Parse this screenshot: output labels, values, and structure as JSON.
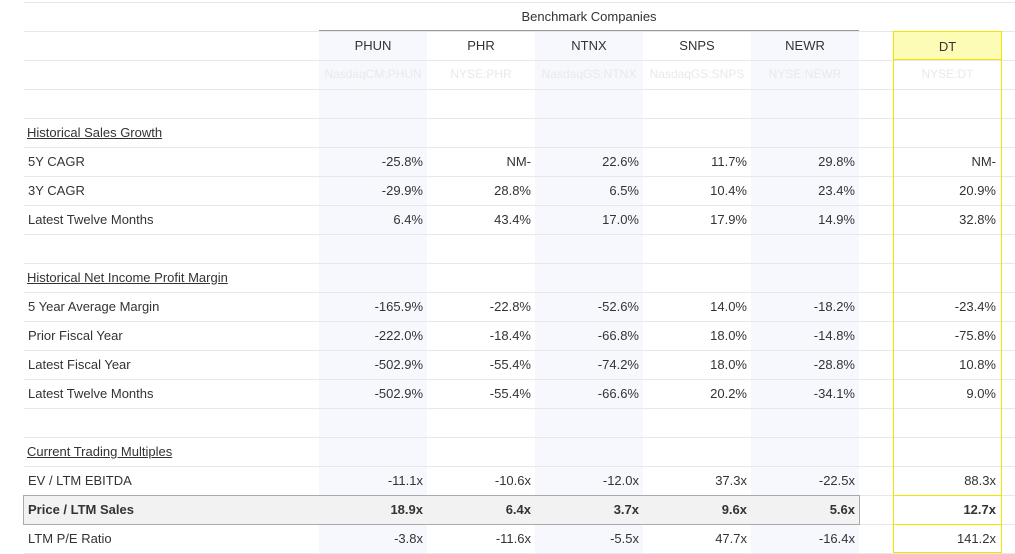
{
  "benchmark_title": "Benchmark Companies",
  "columns": [
    {
      "name": "PHUN",
      "ticker": "NasdaqCM:PHUN"
    },
    {
      "name": "PHR",
      "ticker": "NYSE:PHR"
    },
    {
      "name": "NTNX",
      "ticker": "NasdaqGS:NTNX"
    },
    {
      "name": "SNPS",
      "ticker": "NasdaqGS:SNPS"
    },
    {
      "name": "NEWR",
      "ticker": "NYSE:NEWR"
    }
  ],
  "target": {
    "name": "DT",
    "ticker": "NYSE:DT"
  },
  "rows": [
    {
      "type": "blank"
    },
    {
      "type": "section",
      "label": "Historical Sales Growth"
    },
    {
      "type": "data",
      "label": "5Y CAGR",
      "values": [
        "-25.8%",
        "NM-",
        "22.6%",
        "11.7%",
        "29.8%"
      ],
      "target": "NM-"
    },
    {
      "type": "data",
      "label": "3Y CAGR",
      "values": [
        "-29.9%",
        "28.8%",
        "6.5%",
        "10.4%",
        "23.4%"
      ],
      "target": "20.9%"
    },
    {
      "type": "data",
      "label": "Latest Twelve Months",
      "values": [
        "6.4%",
        "43.4%",
        "17.0%",
        "17.9%",
        "14.9%"
      ],
      "target": "32.8%"
    },
    {
      "type": "blank"
    },
    {
      "type": "section",
      "label": "Historical Net Income Profit Margin"
    },
    {
      "type": "data",
      "label": "5 Year Average Margin",
      "values": [
        "-165.9%",
        "-22.8%",
        "-52.6%",
        "14.0%",
        "-18.2%"
      ],
      "target": "-23.4%"
    },
    {
      "type": "data",
      "label": "Prior Fiscal Year",
      "values": [
        "-222.0%",
        "-18.4%",
        "-66.8%",
        "18.0%",
        "-14.8%"
      ],
      "target": "-75.8%"
    },
    {
      "type": "data",
      "label": "Latest Fiscal Year",
      "values": [
        "-502.9%",
        "-55.4%",
        "-74.2%",
        "18.0%",
        "-28.8%"
      ],
      "target": "10.8%"
    },
    {
      "type": "data",
      "label": "Latest Twelve Months",
      "values": [
        "-502.9%",
        "-55.4%",
        "-66.6%",
        "20.2%",
        "-34.1%"
      ],
      "target": "9.0%"
    },
    {
      "type": "blank"
    },
    {
      "type": "section",
      "label": "Current Trading Multiples"
    },
    {
      "type": "data",
      "label": "EV / LTM EBITDA",
      "values": [
        "-11.1x",
        "-10.6x",
        "-12.0x",
        "37.3x",
        "-22.5x"
      ],
      "target": "88.3x"
    },
    {
      "type": "data",
      "label": "Price / LTM Sales",
      "values": [
        "18.9x",
        "6.4x",
        "3.7x",
        "9.6x",
        "5.6x"
      ],
      "target": "12.7x",
      "highlight": true
    },
    {
      "type": "data",
      "label": "LTM P/E Ratio",
      "values": [
        "-3.8x",
        "-11.6x",
        "-5.5x",
        "47.7x",
        "-16.4x"
      ],
      "target": "141.2x"
    }
  ],
  "colors": {
    "shade": "#f6f8fd",
    "target_fill": "#fdfcb6",
    "target_border": "#f1e500",
    "highlight_fill": "#f2f2f2"
  }
}
